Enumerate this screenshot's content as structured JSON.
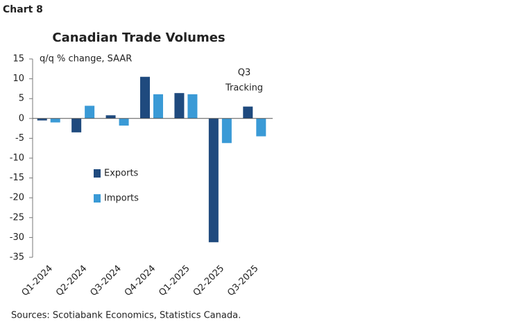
{
  "chart_label": "Chart 8",
  "chart_data": {
    "type": "bar",
    "title": "Canadian Trade Volumes",
    "y_axis_label": "q/q % change, SAAR",
    "annotation": [
      "Q3",
      "Tracking"
    ],
    "source": "Sources: Scotiabank Economics, Statistics Canada.",
    "categories": [
      "Q1-2024",
      "Q2-2024",
      "Q3-2024",
      "Q4-2024",
      "Q1-2025",
      "Q2-2025",
      "Q3-2025"
    ],
    "series": [
      {
        "name": "Exports",
        "color": "#1f4a7e",
        "values": [
          -0.5,
          -3.5,
          0.8,
          10.5,
          6.4,
          -31.2,
          3.0
        ]
      },
      {
        "name": "Imports",
        "color": "#3a9ad6",
        "values": [
          -1.0,
          3.2,
          -1.8,
          6.1,
          6.1,
          -6.2,
          -4.5
        ]
      }
    ],
    "ylim": [
      -35,
      15
    ],
    "yticks": [
      -35,
      -30,
      -25,
      -20,
      -15,
      -10,
      -5,
      0,
      5,
      10,
      15
    ],
    "grid": false
  }
}
